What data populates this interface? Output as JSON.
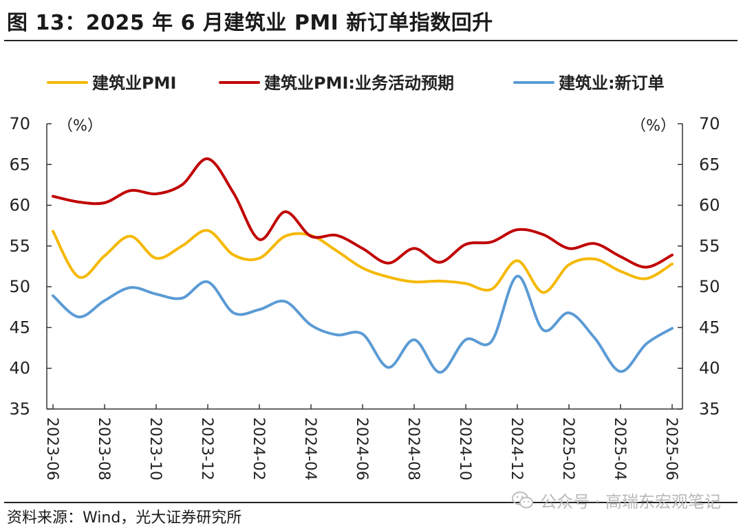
{
  "figure": {
    "title": "图 13：2025 年 6 月建筑业 PMI 新订单指数回升",
    "source": "资料来源：Wind，光大证券研究所",
    "watermark": "公众号 · 高瑞东宏观笔记",
    "watermark_icon": "wechat-icon"
  },
  "chart_data": {
    "type": "line",
    "left_unit": "（%）",
    "right_unit": "（%）",
    "ylim": [
      35,
      70
    ],
    "yticks": [
      35,
      40,
      45,
      50,
      55,
      60,
      65,
      70
    ],
    "x": [
      "2023-06",
      "2023-07",
      "2023-08",
      "2023-09",
      "2023-10",
      "2023-11",
      "2023-12",
      "2024-01",
      "2024-02",
      "2024-03",
      "2024-04",
      "2024-05",
      "2024-06",
      "2024-07",
      "2024-08",
      "2024-09",
      "2024-10",
      "2024-11",
      "2024-12",
      "2025-01",
      "2025-02",
      "2025-03",
      "2025-04",
      "2025-05",
      "2025-06"
    ],
    "xtick_labels": [
      "2023-06",
      "2023-08",
      "2023-10",
      "2023-12",
      "2024-02",
      "2024-04",
      "2024-06",
      "2024-08",
      "2024-10",
      "2024-12",
      "2025-02",
      "2025-04",
      "2025-06"
    ],
    "legend_position": "top",
    "grid": false,
    "series": [
      {
        "name": "建筑业PMI",
        "color": "#F5B800",
        "values": [
          56.8,
          51.2,
          53.8,
          56.2,
          53.5,
          55.0,
          56.9,
          53.9,
          53.5,
          56.2,
          56.3,
          54.4,
          52.3,
          51.2,
          50.6,
          50.7,
          50.4,
          49.7,
          53.2,
          49.3,
          52.7,
          53.4,
          51.9,
          51.0,
          52.8
        ]
      },
      {
        "name": "建筑业PMI:业务活动预期",
        "color": "#C00000",
        "values": [
          61.1,
          60.4,
          60.3,
          61.8,
          61.4,
          62.5,
          65.7,
          61.5,
          55.8,
          59.2,
          56.2,
          56.3,
          54.7,
          52.9,
          54.7,
          53.0,
          55.2,
          55.5,
          57.0,
          56.4,
          54.7,
          55.3,
          53.7,
          52.4,
          53.9
        ]
      },
      {
        "name": "建筑业:新订单",
        "color": "#5B9BD5",
        "values": [
          48.9,
          46.3,
          48.3,
          49.9,
          49.1,
          48.6,
          50.6,
          46.8,
          47.2,
          48.2,
          45.3,
          44.1,
          44.2,
          40.1,
          43.5,
          39.5,
          43.5,
          43.3,
          51.3,
          44.7,
          46.8,
          43.7,
          39.6,
          43.0,
          44.9
        ]
      }
    ]
  }
}
